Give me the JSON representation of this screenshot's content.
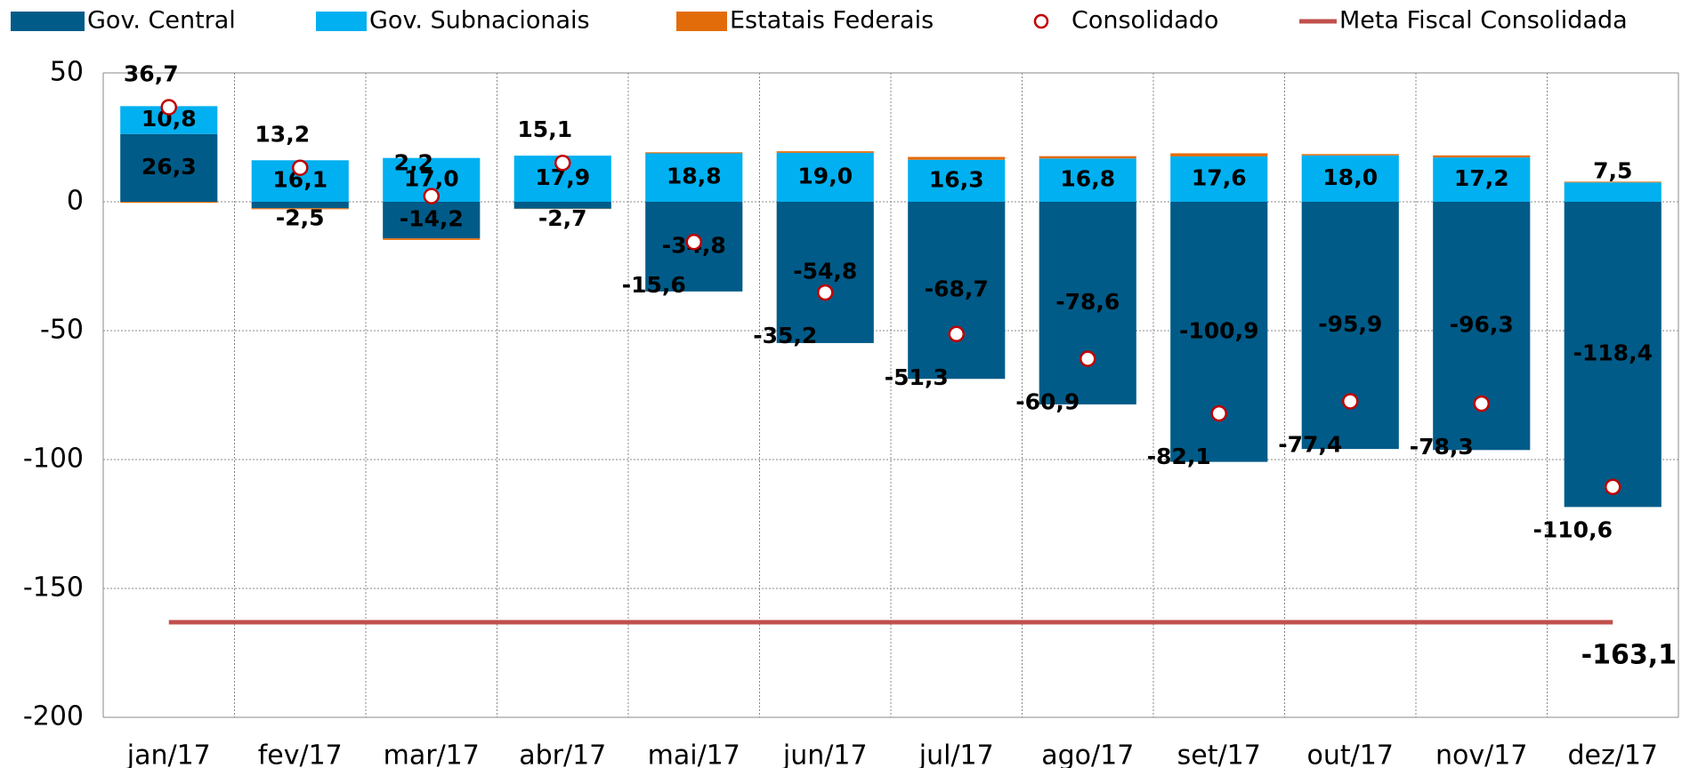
{
  "chart_data": {
    "type": "bar",
    "categories": [
      "jan/17",
      "fev/17",
      "mar/17",
      "abr/17",
      "mai/17",
      "jun/17",
      "jul/17",
      "ago/17",
      "set/17",
      "out/17",
      "nov/17",
      "dez/17"
    ],
    "series": [
      {
        "name": "Gov. Central",
        "type": "bar",
        "color": "#005b88",
        "values": [
          26.3,
          -2.5,
          -14.2,
          -2.7,
          -34.8,
          -54.8,
          -68.7,
          -78.6,
          -100.9,
          -95.9,
          -96.3,
          -118.4
        ],
        "value_labels": [
          "26,3",
          "-2,5",
          "-14,2",
          "-2,7",
          "-34,8",
          "-54,8",
          "-68,7",
          "-78,6",
          "-100,9",
          "-95,9",
          "-96,3",
          "-118,4"
        ]
      },
      {
        "name": "Gov. Subnacionais",
        "type": "bar",
        "color": "#00b0f0",
        "values": [
          10.8,
          16.1,
          17.0,
          17.9,
          18.8,
          19.0,
          16.3,
          16.8,
          17.6,
          18.0,
          17.2,
          7.5
        ],
        "value_labels": [
          "10,8",
          "16,1",
          "17,0",
          "17,9",
          "18,8",
          "19,0",
          "16,3",
          "16,8",
          "17,6",
          "18,0",
          "17,2",
          "7,5"
        ]
      },
      {
        "name": "Estatais Federais",
        "type": "bar",
        "color": "#e36c0a",
        "values": [
          -0.4,
          -0.4,
          -0.6,
          -0.1,
          0.4,
          0.6,
          1.1,
          0.9,
          1.2,
          0.5,
          0.8,
          0.3
        ]
      },
      {
        "name": "Consolidado",
        "type": "scatter",
        "color": "#c00000",
        "values": [
          36.7,
          13.2,
          2.2,
          15.1,
          -15.6,
          -35.2,
          -51.3,
          -60.9,
          -82.1,
          -77.4,
          -78.3,
          -110.6
        ],
        "value_labels": [
          "36,7",
          "13,2",
          "2,2",
          "15,1",
          "-15,6",
          "-35,2",
          "-51,3",
          "-60,9",
          "-82,1",
          "-77,4",
          "-78,3",
          "-110,6"
        ]
      },
      {
        "name": "Meta Fiscal Consolidada",
        "type": "line",
        "color": "#c0504d",
        "values": [
          -163.1,
          -163.1,
          -163.1,
          -163.1,
          -163.1,
          -163.1,
          -163.1,
          -163.1,
          -163.1,
          -163.1,
          -163.1,
          -163.1
        ],
        "value_labels": [
          null,
          null,
          null,
          null,
          null,
          null,
          null,
          null,
          null,
          null,
          null,
          "-163,1"
        ]
      }
    ],
    "ylim": [
      -200,
      50
    ],
    "yticks": [
      -200,
      -150,
      -100,
      -50,
      0,
      50
    ],
    "grid": true,
    "legend": "top"
  }
}
